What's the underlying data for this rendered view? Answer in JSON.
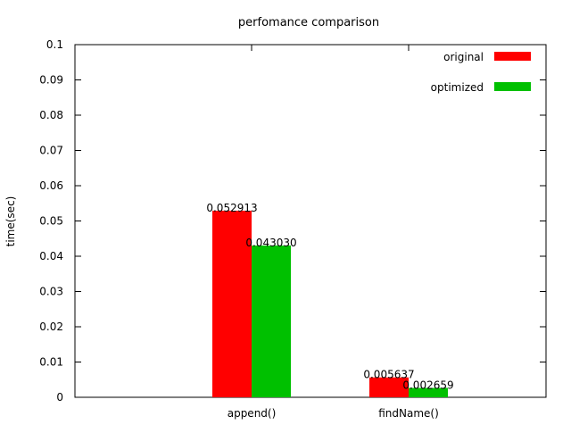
{
  "chart_data": {
    "type": "bar",
    "title": "perfomance comparison",
    "xlabel": "",
    "ylabel": "time(sec)",
    "ylim": [
      0,
      0.1
    ],
    "yticks": [
      "0",
      "0.01",
      "0.02",
      "0.03",
      "0.04",
      "0.05",
      "0.06",
      "0.07",
      "0.08",
      "0.09",
      "0.1"
    ],
    "yticks_values": [
      0,
      0.01,
      0.02,
      0.03,
      0.04,
      0.05,
      0.06,
      0.07,
      0.08,
      0.09,
      0.1
    ],
    "categories": [
      "append()",
      "findName()"
    ],
    "series": [
      {
        "name": "original",
        "color": "#ff0000",
        "values": [
          0.052913,
          0.005637
        ],
        "labels": [
          "0.052913",
          "0.005637"
        ]
      },
      {
        "name": "optimized",
        "color": "#00c000",
        "values": [
          0.04303,
          0.002659
        ],
        "labels": [
          "0.043030",
          "0.002659"
        ]
      }
    ],
    "grid": false,
    "legend_position": "top-right"
  }
}
